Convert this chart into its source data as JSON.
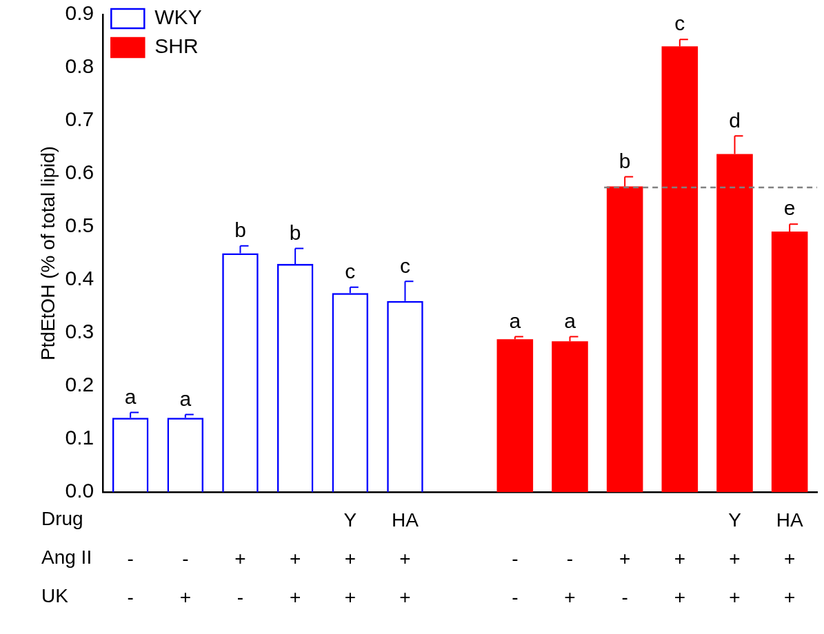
{
  "chart_data": {
    "type": "bar",
    "ylabel": "PtdEtOH (% of total lipid)",
    "categories": [
      "\n-\n-",
      "\n-\n+",
      "\n+\n-",
      "\n+\n+",
      "Y\n+\n+",
      "HA\n+\n+",
      null,
      "\n-\n-",
      "\n-\n+",
      "\n+\n-",
      "\n+\n+",
      "Y\n+\n+",
      "HA\n+\n+"
    ],
    "series": [
      {
        "name": "WKY",
        "color": "#0000ff",
        "values": [
          0.14,
          0.14,
          0.45,
          0.43,
          0.375,
          0.36,
          null,
          null,
          null,
          null,
          null,
          null,
          null
        ],
        "errors": [
          [
            0.14,
            0.15
          ],
          [
            0.14,
            0.146
          ],
          [
            0.45,
            0.464
          ],
          [
            0.43,
            0.459
          ],
          [
            0.375,
            0.386
          ],
          [
            0.36,
            0.397
          ],
          null,
          null,
          null,
          null,
          null,
          null,
          null
        ],
        "value_labels": [
          "a",
          "a",
          "b",
          "b",
          "c",
          "c",
          null,
          null,
          null,
          null,
          null,
          null,
          null
        ]
      },
      {
        "name": "SHR",
        "color": "#ff0000",
        "values": [
          null,
          null,
          null,
          null,
          null,
          null,
          null,
          0.288,
          0.284,
          0.576,
          0.84,
          0.637,
          0.491
        ],
        "errors": [
          null,
          null,
          null,
          null,
          null,
          null,
          null,
          [
            0.288,
            0.293
          ],
          [
            0.284,
            0.293
          ],
          [
            0.576,
            0.594
          ],
          [
            0.84,
            0.853
          ],
          [
            0.637,
            0.671
          ],
          [
            0.491,
            0.505
          ]
        ],
        "value_labels": [
          null,
          null,
          null,
          null,
          null,
          null,
          null,
          "a",
          "a",
          "b",
          "c",
          "d",
          "e"
        ]
      }
    ],
    "ylim": [
      0,
      0.9
    ],
    "yticks": [
      {
        "value": 0,
        "label": "0.0"
      },
      0.1,
      0.2,
      0.3,
      0.4,
      0.5,
      0.6,
      0.7,
      0.8,
      0.9
    ],
    "ref_lines": [
      {
        "axis": "y",
        "value": 0.574,
        "color": "#808080",
        "line_style": "dashed"
      }
    ],
    "annotations": [
      "Drug",
      "Ang II",
      "UK"
    ],
    "legend": "top left",
    "grid": false
  }
}
